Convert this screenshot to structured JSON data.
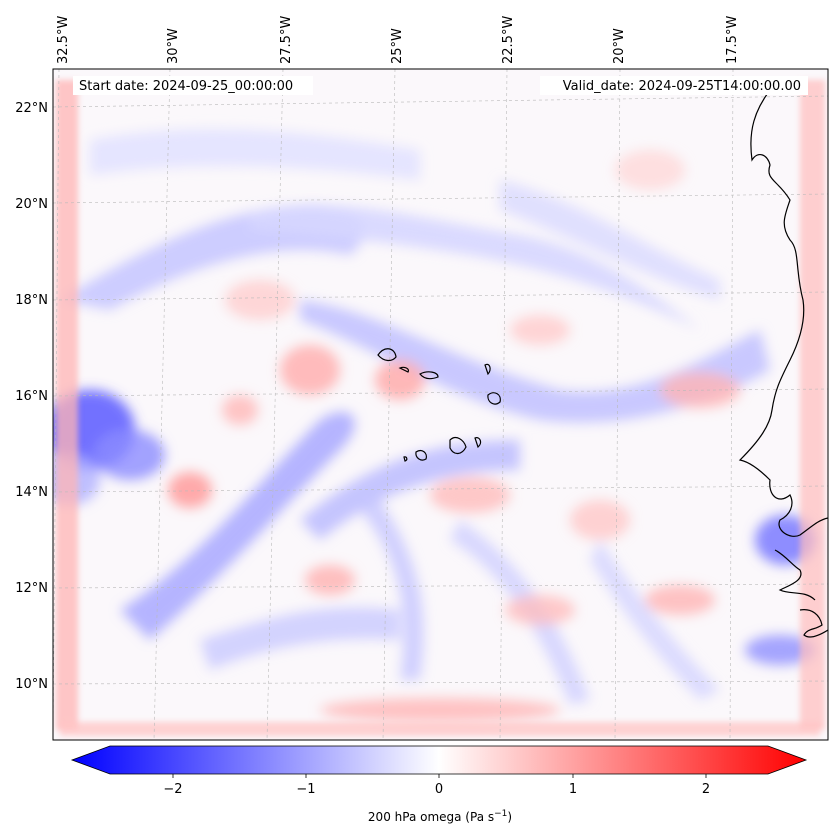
{
  "map": {
    "header": {
      "start_date": "Start date: 2024-09-25_00:00:00",
      "valid_date": "Valid_date: 2024-09-25T14:00:00.00"
    },
    "extent": {
      "lon_min": -33.0,
      "lon_max": -15.6,
      "lat_min": 8.8,
      "lat_max": 22.8
    },
    "longitude_ticks": [
      {
        "label": "32.5°W",
        "lon": -32.5
      },
      {
        "label": "30°W",
        "lon": -30.0
      },
      {
        "label": "27.5°W",
        "lon": -27.5
      },
      {
        "label": "25°W",
        "lon": -25.0
      },
      {
        "label": "22.5°W",
        "lon": -22.5
      },
      {
        "label": "20°W",
        "lon": -20.0
      },
      {
        "label": "17.5°W",
        "lon": -17.5
      }
    ],
    "latitude_ticks": [
      {
        "label": "22°N",
        "lat": 22
      },
      {
        "label": "20°N",
        "lat": 20
      },
      {
        "label": "18°N",
        "lat": 18
      },
      {
        "label": "16°N",
        "lat": 16
      },
      {
        "label": "14°N",
        "lat": 14
      },
      {
        "label": "12°N",
        "lat": 12
      },
      {
        "label": "10°N",
        "lat": 10
      }
    ],
    "gridlines": true,
    "features": [
      "Cape Verde islands",
      "West African coastline"
    ]
  },
  "colorbar": {
    "label": "200 hPa omega (Pa s",
    "label_sup": "−1",
    "label_end": ")",
    "range": [
      -2.6,
      2.6
    ],
    "extend": "both",
    "ticks": [
      {
        "label": "−2",
        "value": -2
      },
      {
        "label": "−1",
        "value": -1
      },
      {
        "label": "0",
        "value": 0
      },
      {
        "label": "1",
        "value": 1
      },
      {
        "label": "2",
        "value": 2
      }
    ],
    "colors": {
      "negative": "#0000ff",
      "zero": "#ffffff",
      "positive": "#ff0000"
    }
  }
}
